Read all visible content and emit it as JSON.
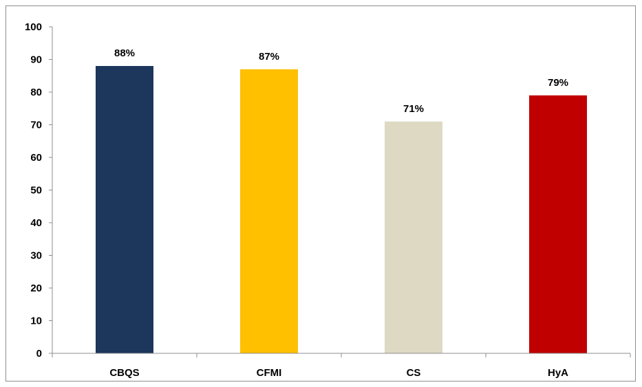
{
  "chart_data": {
    "type": "bar",
    "categories": [
      "CBQS",
      "CFMI",
      "CS",
      "HyA"
    ],
    "values": [
      88,
      87,
      71,
      79
    ],
    "data_labels": [
      "88%",
      "87%",
      "71%",
      "79%"
    ],
    "colors": [
      "#1c365c",
      "#ffc000",
      "#ddd9c3",
      "#c00000"
    ],
    "title": "",
    "xlabel": "",
    "ylabel": "",
    "ylim": [
      0,
      100
    ],
    "yticks": [
      0,
      10,
      20,
      30,
      40,
      50,
      60,
      70,
      80,
      90,
      100
    ],
    "grid": false,
    "legend": "none"
  }
}
